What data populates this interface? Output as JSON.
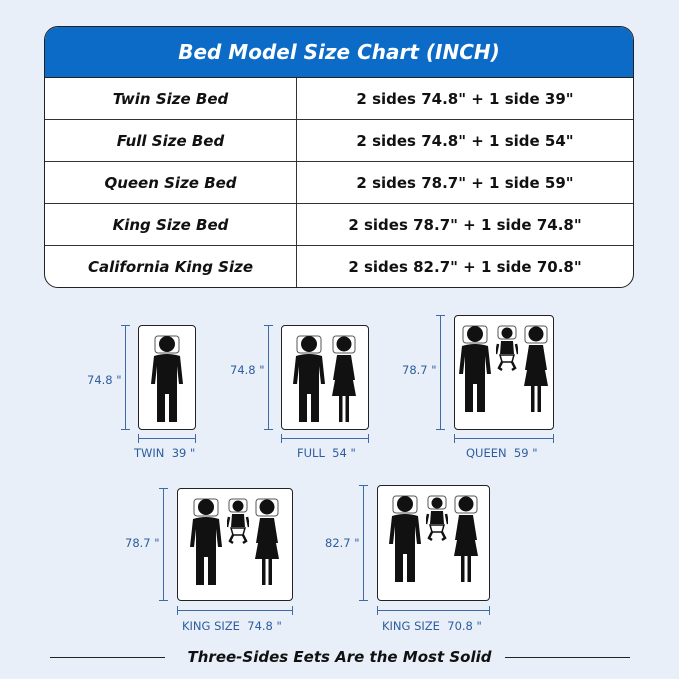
{
  "title": "Bed Model Size Chart (INCH)",
  "rows": [
    {
      "bed": "Twin Size Bed",
      "sides": "2 sides 74.8\" + 1 side 39\""
    },
    {
      "bed": "Full Size Bed",
      "sides": "2 sides 74.8\" + 1 side 54\""
    },
    {
      "bed": "Queen Size Bed",
      "sides": "2 sides 78.7\" + 1 side 59\""
    },
    {
      "bed": "King Size Bed",
      "sides": "2 sides 78.7\" + 1 side 74.8\""
    },
    {
      "bed": "California King Size",
      "sides": "2 sides 82.7\" + 1 side 70.8\""
    }
  ],
  "diagrams": [
    {
      "length": "74.8 \"",
      "width": "TWIN  39 \"",
      "people": [
        "man"
      ]
    },
    {
      "length": "74.8 \"",
      "width": "FULL  54 \"",
      "people": [
        "man",
        "woman"
      ]
    },
    {
      "length": "78.7 \"",
      "width": "QUEEN  59 \"",
      "people": [
        "man",
        "baby",
        "woman"
      ]
    },
    {
      "length": "78.7 \"",
      "width": "KING SIZE  74.8 \"",
      "people": [
        "man",
        "baby",
        "woman"
      ]
    },
    {
      "length": "82.7 \"",
      "width": "KING SIZE  70.8 \"",
      "people": [
        "man",
        "baby",
        "woman"
      ]
    }
  ],
  "footer": "Three-Sides Eets Are the Most Solid",
  "colors": {
    "header": "#0b6bc6",
    "dimension": "#3e6aa8",
    "background": "#e8eff8"
  }
}
